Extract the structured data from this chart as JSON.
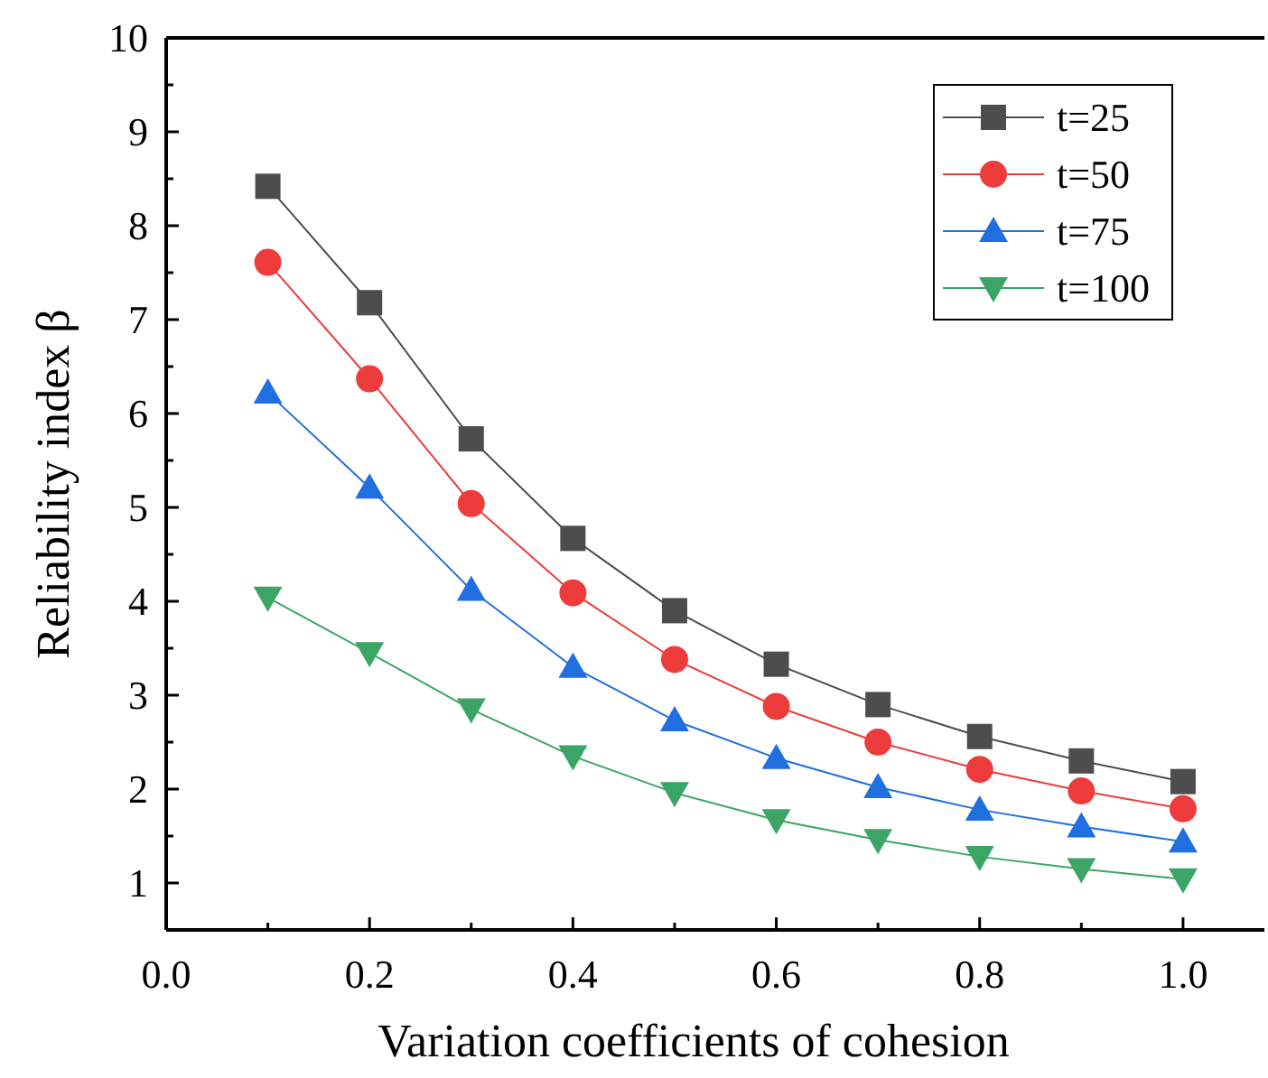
{
  "chart_data": {
    "type": "line",
    "xlabel": "Variation coefficients of cohesion",
    "ylabel": "Reliability index β",
    "x": [
      0.1,
      0.2,
      0.3,
      0.4,
      0.5,
      0.6,
      0.7,
      0.8,
      0.9,
      1.0
    ],
    "series": [
      {
        "name": "t=25",
        "color": "#4d4d4d",
        "marker": "square",
        "values": [
          8.42,
          7.18,
          5.73,
          4.67,
          3.9,
          3.33,
          2.9,
          2.56,
          2.3,
          2.08
        ]
      },
      {
        "name": "t=50",
        "color": "#ee3b3b",
        "marker": "circle",
        "values": [
          7.61,
          6.37,
          5.04,
          4.09,
          3.38,
          2.88,
          2.5,
          2.21,
          1.98,
          1.79
        ]
      },
      {
        "name": "t=75",
        "color": "#1f6fe0",
        "marker": "triangle",
        "values": [
          6.22,
          5.21,
          4.12,
          3.3,
          2.73,
          2.33,
          2.02,
          1.78,
          1.6,
          1.44
        ]
      },
      {
        "name": "t=100",
        "color": "#3aa564",
        "marker": "triangle-down",
        "values": [
          4.04,
          3.45,
          2.85,
          2.35,
          1.96,
          1.67,
          1.46,
          1.28,
          1.15,
          1.04
        ]
      }
    ],
    "xlim": [
      0,
      1.08
    ],
    "ylim": [
      0.5,
      10
    ],
    "xticks": [
      {
        "value": 0,
        "label": "0.0"
      },
      {
        "value": 0.1,
        "label": null
      },
      {
        "value": 0.2,
        "label": "0.2"
      },
      {
        "value": 0.3,
        "label": null
      },
      {
        "value": 0.4,
        "label": "0.4"
      },
      {
        "value": 0.5,
        "label": null
      },
      {
        "value": 0.6,
        "label": "0.6"
      },
      {
        "value": 0.7,
        "label": null
      },
      {
        "value": 0.8,
        "label": "0.8"
      },
      {
        "value": 0.9,
        "label": null
      },
      {
        "value": 1.0,
        "label": "1.0"
      }
    ],
    "yticks": [
      {
        "value": 0.5,
        "label": null
      },
      1,
      {
        "value": 1.5,
        "label": null
      },
      2,
      {
        "value": 2.5,
        "label": null
      },
      3,
      {
        "value": 3.5,
        "label": null
      },
      4,
      {
        "value": 4.5,
        "label": null
      },
      5,
      {
        "value": 5.5,
        "label": null
      },
      6,
      {
        "value": 6.5,
        "label": null
      },
      7,
      {
        "value": 7.5,
        "label": null
      },
      8,
      {
        "value": 8.5,
        "label": null
      },
      9,
      {
        "value": 9.5,
        "label": null
      },
      10
    ],
    "legend": "top right",
    "grid": false,
    "line_style": "solid"
  }
}
